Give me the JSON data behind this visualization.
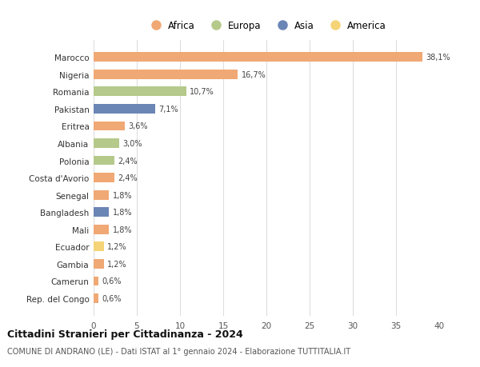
{
  "categories": [
    "Rep. del Congo",
    "Camerun",
    "Gambia",
    "Ecuador",
    "Mali",
    "Bangladesh",
    "Senegal",
    "Costa d'Avorio",
    "Polonia",
    "Albania",
    "Eritrea",
    "Pakistan",
    "Romania",
    "Nigeria",
    "Marocco"
  ],
  "values": [
    0.6,
    0.6,
    1.2,
    1.2,
    1.8,
    1.8,
    1.8,
    2.4,
    2.4,
    3.0,
    3.6,
    7.1,
    10.7,
    16.7,
    38.1
  ],
  "labels": [
    "0,6%",
    "0,6%",
    "1,2%",
    "1,2%",
    "1,8%",
    "1,8%",
    "1,8%",
    "2,4%",
    "2,4%",
    "3,0%",
    "3,6%",
    "7,1%",
    "10,7%",
    "16,7%",
    "38,1%"
  ],
  "continents": [
    "Africa",
    "Africa",
    "Africa",
    "America",
    "Africa",
    "Asia",
    "Africa",
    "Africa",
    "Europa",
    "Europa",
    "Africa",
    "Asia",
    "Europa",
    "Africa",
    "Africa"
  ],
  "colors": {
    "Africa": "#F0A875",
    "Europa": "#B5C98A",
    "Asia": "#6B85B5",
    "America": "#F5D478"
  },
  "legend_order": [
    "Africa",
    "Europa",
    "Asia",
    "America"
  ],
  "xlim": [
    0,
    40
  ],
  "xticks": [
    0,
    5,
    10,
    15,
    20,
    25,
    30,
    35,
    40
  ],
  "title": "Cittadini Stranieri per Cittadinanza - 2024",
  "subtitle": "COMUNE DI ANDRANO (LE) - Dati ISTAT al 1° gennaio 2024 - Elaborazione TUTTITALIA.IT",
  "background_color": "#ffffff",
  "grid_color": "#dddddd",
  "bar_height": 0.55
}
